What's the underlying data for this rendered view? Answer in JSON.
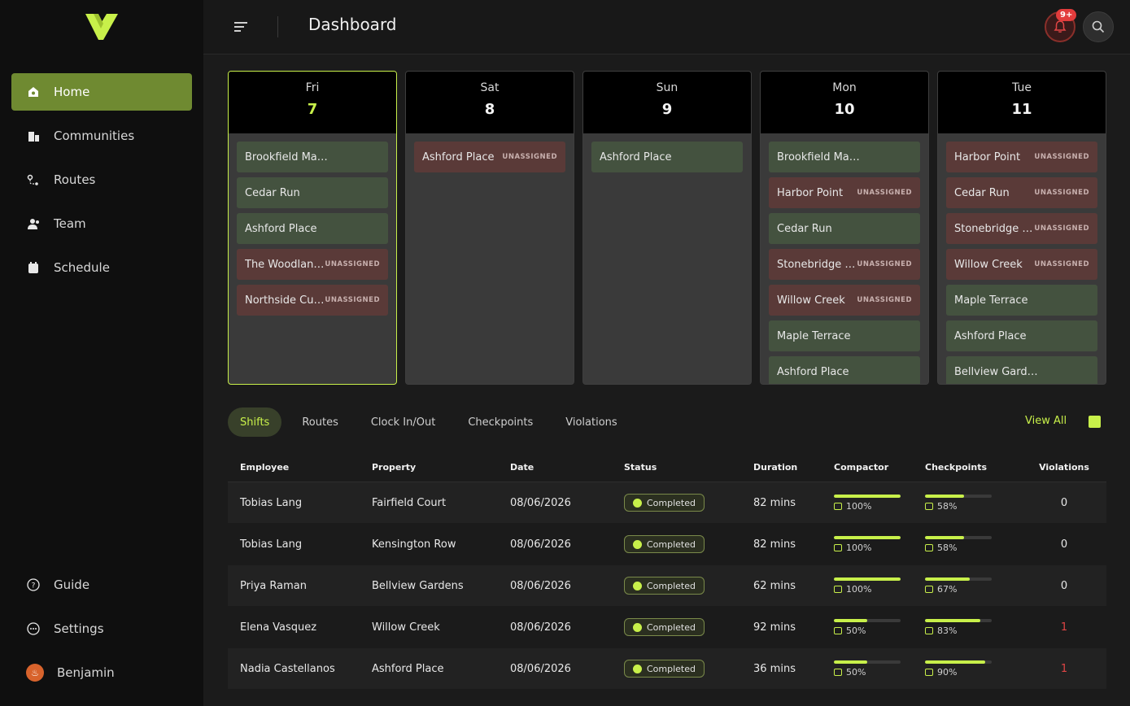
{
  "page_title": "Dashboard",
  "notifications_badge": "9+",
  "nav": {
    "items": [
      {
        "label": "Home",
        "icon": "home-icon",
        "active": true
      },
      {
        "label": "Communities",
        "icon": "buildings-icon"
      },
      {
        "label": "Routes",
        "icon": "route-icon"
      },
      {
        "label": "Team",
        "icon": "team-icon"
      },
      {
        "label": "Schedule",
        "icon": "calendar-icon"
      }
    ],
    "bottom": [
      {
        "label": "Guide",
        "icon": "help-icon"
      },
      {
        "label": "Settings",
        "icon": "settings-icon"
      }
    ],
    "user": {
      "name": "Benjamin",
      "avatar_glyph": "♨"
    }
  },
  "days": [
    {
      "name": "Fri",
      "num": "7",
      "today": true,
      "shifts": [
        {
          "name": "Brookfield Manor",
          "tag": ""
        },
        {
          "name": "Cedar Run",
          "tag": ""
        },
        {
          "name": "Ashford Place",
          "tag": ""
        },
        {
          "name": "The Woodlands",
          "tag": "UNASSIGNED"
        },
        {
          "name": "Northside Curbside",
          "tag": "UNASSIGNED"
        }
      ]
    },
    {
      "name": "Sat",
      "num": "8",
      "shifts": [
        {
          "name": "Ashford Place",
          "tag": "UNASSIGNED"
        }
      ]
    },
    {
      "name": "Sun",
      "num": "9",
      "shifts": [
        {
          "name": "Ashford Place",
          "tag": ""
        }
      ]
    },
    {
      "name": "Mon",
      "num": "10",
      "shifts": [
        {
          "name": "Brookfield Manor",
          "tag": ""
        },
        {
          "name": "Harbor Point",
          "tag": "UNASSIGNED"
        },
        {
          "name": "Cedar Run",
          "tag": ""
        },
        {
          "name": "Stonebridge Commons",
          "tag": "UNASSIGNED"
        },
        {
          "name": "Willow Creek",
          "tag": "UNASSIGNED"
        },
        {
          "name": "Maple Terrace",
          "tag": ""
        },
        {
          "name": "Ashford Place",
          "tag": ""
        }
      ]
    },
    {
      "name": "Tue",
      "num": "11",
      "shifts": [
        {
          "name": "Harbor Point",
          "tag": "UNASSIGNED"
        },
        {
          "name": "Cedar Run",
          "tag": "UNASSIGNED"
        },
        {
          "name": "Stonebridge Commons",
          "tag": "UNASSIGNED"
        },
        {
          "name": "Willow Creek",
          "tag": "UNASSIGNED"
        },
        {
          "name": "Maple Terrace",
          "tag": ""
        },
        {
          "name": "Ashford Place",
          "tag": ""
        },
        {
          "name": "Bellview Gardens",
          "tag": ""
        }
      ]
    }
  ],
  "tabs": [
    "Shifts",
    "Routes",
    "Clock In/Out",
    "Checkpoints",
    "Violations"
  ],
  "view_all": "View All",
  "table": {
    "headers": [
      "Employee",
      "Property",
      "Date",
      "Status",
      "Duration",
      "Compactor",
      "Checkpoints",
      "Violations"
    ],
    "rows": [
      {
        "employee": "Tobias Lang",
        "property": "Fairfield Court",
        "date": "08/06/2026",
        "status": "Completed",
        "duration": "82 mins",
        "compactor": 100,
        "compactor_label": "100%",
        "checkpoints": 58,
        "checkpoints_label": "58%",
        "violations": "0"
      },
      {
        "employee": "Tobias Lang",
        "property": "Kensington Row",
        "date": "08/06/2026",
        "status": "Completed",
        "duration": "82 mins",
        "compactor": 100,
        "compactor_label": "100%",
        "checkpoints": 58,
        "checkpoints_label": "58%",
        "violations": "0"
      },
      {
        "employee": "Priya Raman",
        "property": "Bellview Gardens",
        "date": "08/06/2026",
        "status": "Completed",
        "duration": "62 mins",
        "compactor": 100,
        "compactor_label": "100%",
        "checkpoints": 67,
        "checkpoints_label": "67%",
        "violations": "0"
      },
      {
        "employee": "Elena Vasquez",
        "property": "Willow Creek",
        "date": "08/06/2026",
        "status": "Completed",
        "duration": "92 mins",
        "compactor": 50,
        "compactor_label": "50%",
        "checkpoints": 83,
        "checkpoints_label": "83%",
        "violations": "1"
      },
      {
        "employee": "Nadia Castellanos",
        "property": "Ashford Place",
        "date": "08/06/2026",
        "status": "Completed",
        "duration": "36 mins",
        "compactor": 50,
        "compactor_label": "50%",
        "checkpoints": 90,
        "checkpoints_label": "90%",
        "violations": "1"
      }
    ]
  },
  "colors": {
    "accent": "#c8f04a",
    "nav_active": "#6f8a31",
    "assigned": "#44523f",
    "unassigned": "#5a3a38",
    "alert": "#e04545"
  }
}
